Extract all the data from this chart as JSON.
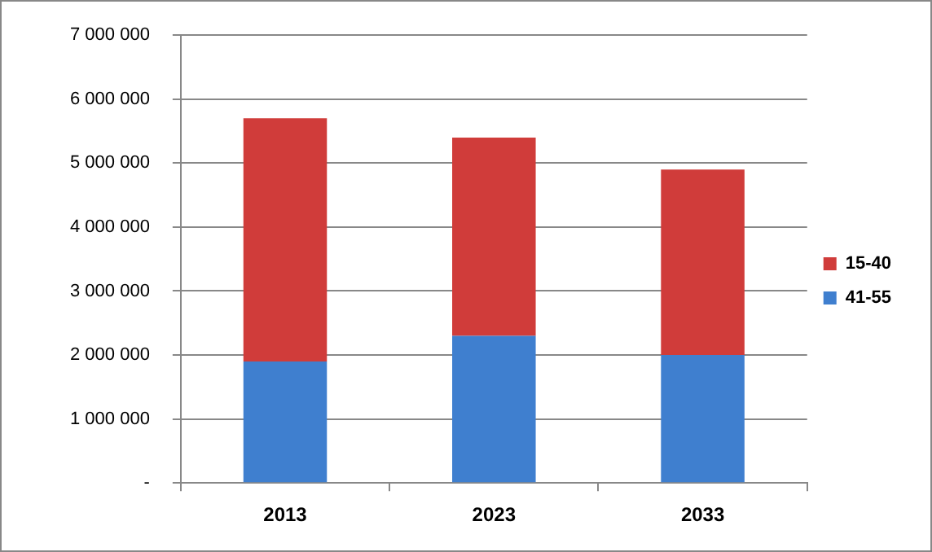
{
  "chart_data": {
    "type": "bar",
    "stacked": true,
    "categories": [
      "2013",
      "2023",
      "2033"
    ],
    "series": [
      {
        "name": "41-55",
        "color": "#3f7fcf",
        "values": [
          1900000,
          2300000,
          2000000
        ]
      },
      {
        "name": "15-40",
        "color": "#d03c3a",
        "values": [
          3800000,
          3100000,
          2900000
        ]
      }
    ],
    "ylim": [
      0,
      7000000
    ],
    "yticks": [
      {
        "value": 0,
        "label": "-"
      },
      {
        "value": 1000000,
        "label": "1 000 000"
      },
      {
        "value": 2000000,
        "label": "2 000 000"
      },
      {
        "value": 3000000,
        "label": "3 000 000"
      },
      {
        "value": 4000000,
        "label": "4 000 000"
      },
      {
        "value": 5000000,
        "label": "5 000 000"
      },
      {
        "value": 6000000,
        "label": "6 000 000"
      },
      {
        "value": 7000000,
        "label": "7 000 000"
      }
    ],
    "grid": "y",
    "legend": "right"
  }
}
